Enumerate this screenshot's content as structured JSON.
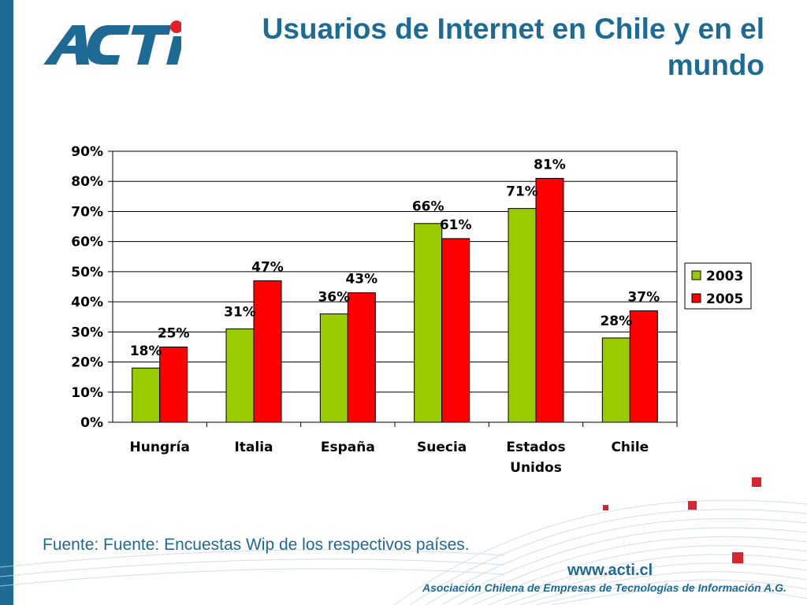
{
  "slide": {
    "title": "Usuarios de Internet en Chile y en el mundo",
    "source": "Fuente: Fuente: Encuestas Wip de los respectivos países.",
    "url": "www.acti.cl",
    "organization": "Asociación Chilena de Empresas de Tecnologías de Información A.G.",
    "logo_text": "ACTI",
    "colors": {
      "brand_blue": "#1d6a95",
      "logo_red": "#e3202a",
      "series_2003": "#99cc00",
      "series_2005": "#ff0000"
    }
  },
  "chart_data": {
    "type": "bar",
    "categories": [
      [
        "Hungría"
      ],
      [
        "Italia"
      ],
      [
        "España"
      ],
      [
        "Suecia"
      ],
      [
        "Estados",
        "Unidos"
      ],
      [
        "Chile"
      ]
    ],
    "series": [
      {
        "name": "2003",
        "values": [
          18,
          31,
          36,
          66,
          71,
          28
        ],
        "labels": [
          "18%",
          "31%",
          "36%",
          "66%",
          "71%",
          "28%"
        ],
        "color": "#99cc00"
      },
      {
        "name": "2005",
        "values": [
          25,
          47,
          43,
          61,
          81,
          37
        ],
        "labels": [
          "25%",
          "47%",
          "43%",
          "61%",
          "81%",
          "37%"
        ],
        "color": "#ff0000"
      }
    ],
    "ylim": [
      0,
      90
    ],
    "yticks": [
      0,
      10,
      20,
      30,
      40,
      50,
      60,
      70,
      80,
      90
    ],
    "ytick_labels": [
      "0%",
      "10%",
      "20%",
      "30%",
      "40%",
      "50%",
      "60%",
      "70%",
      "80%",
      "90%"
    ],
    "grid": true,
    "legend": "right"
  }
}
